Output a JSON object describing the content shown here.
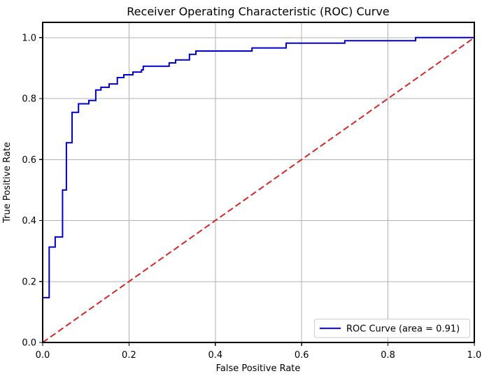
{
  "figure": {
    "background": "#ffffff"
  },
  "chart_data": {
    "type": "line",
    "title": "Receiver Operating Characteristic (ROC) Curve",
    "xlabel": "False Positive Rate",
    "ylabel": "True Positive Rate",
    "xlim": [
      0.0,
      1.0
    ],
    "ylim": [
      0.0,
      1.05
    ],
    "xticks": [
      "0.0",
      "0.2",
      "0.4",
      "0.6",
      "0.8",
      "1.0"
    ],
    "yticks": [
      "0.0",
      "0.2",
      "0.4",
      "0.6",
      "0.8",
      "1.0"
    ],
    "grid": true,
    "grid_color": "#b0b0b0",
    "spine_color": "#000000",
    "legend": {
      "position": "lower right",
      "entries": [
        {
          "label": "ROC Curve (area = 0.91)",
          "color": "#0000cd",
          "style": "solid"
        }
      ]
    },
    "auc": 0.91,
    "series": [
      {
        "name": "ROC Curve",
        "render": "step-post",
        "color": "#0000cd",
        "line_width": 2,
        "points": [
          [
            0.0,
            0.0
          ],
          [
            0.0,
            0.147
          ],
          [
            0.015,
            0.313
          ],
          [
            0.029,
            0.346
          ],
          [
            0.046,
            0.5
          ],
          [
            0.055,
            0.655
          ],
          [
            0.068,
            0.755
          ],
          [
            0.083,
            0.783
          ],
          [
            0.107,
            0.794
          ],
          [
            0.123,
            0.828
          ],
          [
            0.135,
            0.837
          ],
          [
            0.154,
            0.848
          ],
          [
            0.173,
            0.869
          ],
          [
            0.188,
            0.878
          ],
          [
            0.209,
            0.887
          ],
          [
            0.229,
            0.894
          ],
          [
            0.233,
            0.906
          ],
          [
            0.293,
            0.917
          ],
          [
            0.308,
            0.927
          ],
          [
            0.34,
            0.945
          ],
          [
            0.355,
            0.956
          ],
          [
            0.485,
            0.966
          ],
          [
            0.564,
            0.982
          ],
          [
            0.7,
            0.99
          ],
          [
            0.864,
            1.0
          ],
          [
            1.0,
            1.0
          ]
        ]
      },
      {
        "name": "chance-diagonal",
        "render": "dashed-line",
        "color": "#d62728",
        "line_width": 2,
        "dash": [
          9,
          4.5
        ],
        "points": [
          [
            0.0,
            0.0
          ],
          [
            1.0,
            1.0
          ]
        ]
      }
    ]
  }
}
